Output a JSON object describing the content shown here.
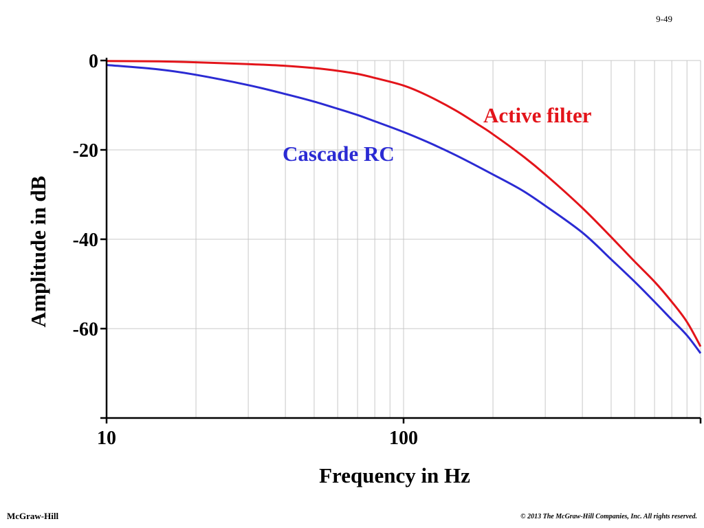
{
  "slide": {
    "number": "9-49"
  },
  "footer": {
    "publisher": "McGraw-Hill",
    "copyright": "© 2013 The McGraw-Hill Companies, Inc. All rights reserved."
  },
  "colors": {
    "active": "#e3141a",
    "cascade": "#2b2bd3",
    "grid": "#c8c8c8",
    "axis": "#000000"
  },
  "chart_data": {
    "type": "line",
    "title": "",
    "xlabel": "Frequency in Hz",
    "ylabel": "Amplitude in dB",
    "x_scale": "log",
    "xlim": [
      10,
      1000
    ],
    "ylim": [
      -80,
      0
    ],
    "x_ticks": [
      10,
      100
    ],
    "x_tick_labels": [
      "10",
      "100"
    ],
    "y_ticks": [
      0,
      -20,
      -40,
      -60
    ],
    "y_tick_labels": [
      "0",
      "-20",
      "-40",
      "-60"
    ],
    "grid": {
      "vertical": true,
      "horizontal": true
    },
    "series": [
      {
        "name": "Active filter",
        "color": "#e3141a",
        "points": [
          [
            10,
            -0.1
          ],
          [
            15,
            -0.2
          ],
          [
            20,
            -0.4
          ],
          [
            30,
            -0.8
          ],
          [
            40,
            -1.2
          ],
          [
            50,
            -1.7
          ],
          [
            60,
            -2.3
          ],
          [
            70,
            -3.0
          ],
          [
            80,
            -3.9
          ],
          [
            100,
            -5.6
          ],
          [
            120,
            -7.8
          ],
          [
            150,
            -11.2
          ],
          [
            180,
            -14.5
          ],
          [
            200,
            -16.5
          ],
          [
            250,
            -21.2
          ],
          [
            300,
            -25.5
          ],
          [
            400,
            -33.0
          ],
          [
            500,
            -39.5
          ],
          [
            600,
            -45.0
          ],
          [
            700,
            -49.5
          ],
          [
            800,
            -54.0
          ],
          [
            900,
            -58.5
          ],
          [
            1000,
            -64.0
          ]
        ]
      },
      {
        "name": "Cascade RC",
        "color": "#2b2bd3",
        "points": [
          [
            10,
            -1.0
          ],
          [
            15,
            -2.0
          ],
          [
            20,
            -3.2
          ],
          [
            30,
            -5.5
          ],
          [
            40,
            -7.5
          ],
          [
            50,
            -9.2
          ],
          [
            60,
            -10.8
          ],
          [
            70,
            -12.2
          ],
          [
            80,
            -13.6
          ],
          [
            100,
            -16.0
          ],
          [
            120,
            -18.2
          ],
          [
            150,
            -21.2
          ],
          [
            200,
            -25.5
          ],
          [
            250,
            -29.0
          ],
          [
            300,
            -32.5
          ],
          [
            400,
            -38.5
          ],
          [
            500,
            -44.5
          ],
          [
            600,
            -49.5
          ],
          [
            700,
            -54.0
          ],
          [
            800,
            -58.0
          ],
          [
            900,
            -61.5
          ],
          [
            1000,
            -65.5
          ]
        ]
      }
    ]
  }
}
